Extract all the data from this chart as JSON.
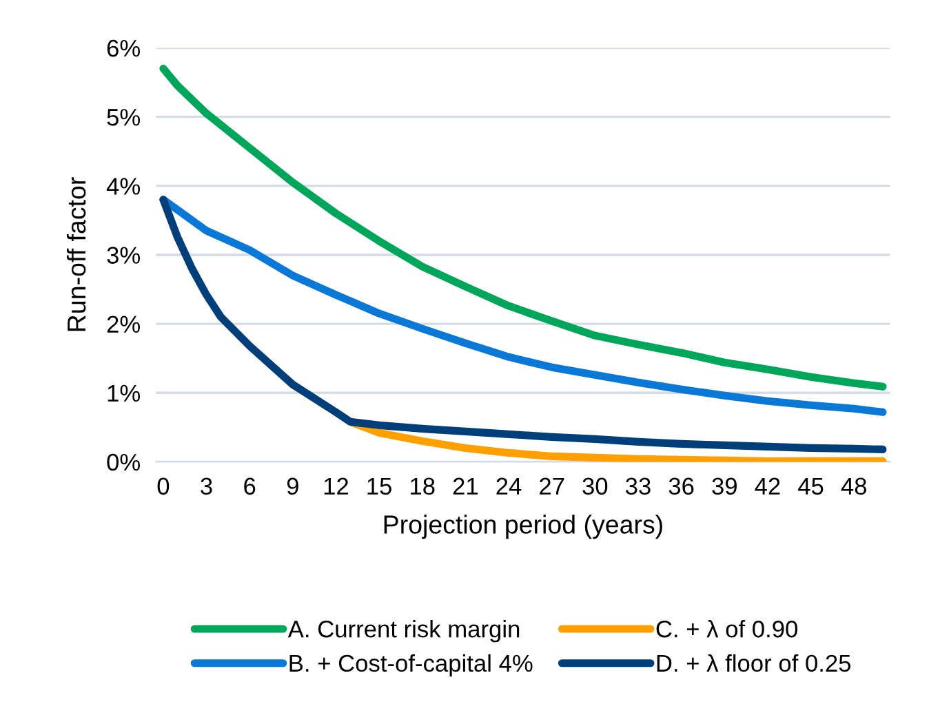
{
  "chart_data": {
    "type": "line",
    "xlabel": "Projection period (years)",
    "ylabel": "Run-off factor",
    "xlim": [
      -0.5,
      50.5
    ],
    "xticks": [
      0,
      3,
      6,
      9,
      12,
      15,
      18,
      21,
      24,
      27,
      30,
      33,
      36,
      39,
      42,
      45,
      48
    ],
    "ylim": [
      0,
      6
    ],
    "yticks": [
      {
        "value": 0,
        "label": "0%"
      },
      {
        "value": 1,
        "label": "1%"
      },
      {
        "value": 2,
        "label": "2%"
      },
      {
        "value": 3,
        "label": "3%"
      },
      {
        "value": 4,
        "label": "4%"
      },
      {
        "value": 5,
        "label": "5%"
      },
      {
        "value": 6,
        "label": "6%"
      }
    ],
    "grid": "y",
    "legend": "bottom",
    "marker": "none",
    "line_style": "solid",
    "series": [
      {
        "name": "A. Current risk margin",
        "color": "#00a65a",
        "x": [
          0,
          1,
          3,
          6,
          9,
          12,
          15,
          18,
          21,
          24,
          27,
          30,
          33,
          36,
          39,
          42,
          45,
          48,
          50
        ],
        "values": [
          5.7,
          5.45,
          5.05,
          4.55,
          4.05,
          3.6,
          3.2,
          2.83,
          2.54,
          2.26,
          2.04,
          1.83,
          1.7,
          1.58,
          1.44,
          1.34,
          1.23,
          1.14,
          1.09
        ]
      },
      {
        "name": "B. + Cost-of-capital 4%",
        "color": "#0a78d7",
        "x": [
          0,
          1,
          3,
          6,
          9,
          12,
          15,
          18,
          21,
          24,
          27,
          30,
          33,
          36,
          39,
          42,
          45,
          48,
          50
        ],
        "values": [
          3.8,
          3.65,
          3.35,
          3.07,
          2.7,
          2.42,
          2.15,
          1.93,
          1.72,
          1.52,
          1.37,
          1.26,
          1.15,
          1.05,
          0.96,
          0.88,
          0.82,
          0.77,
          0.72
        ]
      },
      {
        "name": "C. + λ of 0.90",
        "color": "#ffa000",
        "x": [
          13,
          15,
          18,
          21,
          24,
          27,
          30,
          33,
          36,
          39,
          42,
          45,
          48,
          50
        ],
        "values": [
          0.58,
          0.42,
          0.3,
          0.2,
          0.13,
          0.08,
          0.06,
          0.04,
          0.03,
          0.02,
          0.01,
          0.01,
          0.01,
          0.01
        ]
      },
      {
        "name": "D. + λ floor of 0.25",
        "color": "#003f7a",
        "x": [
          0,
          1,
          2,
          3,
          4,
          6,
          9,
          12,
          13,
          15,
          18,
          21,
          24,
          27,
          30,
          33,
          36,
          39,
          42,
          45,
          48,
          50
        ],
        "values": [
          3.8,
          3.25,
          2.8,
          2.42,
          2.1,
          1.68,
          1.12,
          0.72,
          0.58,
          0.53,
          0.48,
          0.44,
          0.4,
          0.36,
          0.33,
          0.29,
          0.26,
          0.24,
          0.22,
          0.2,
          0.19,
          0.18
        ]
      }
    ]
  }
}
